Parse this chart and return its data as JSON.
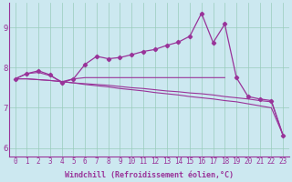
{
  "background_color": "#cce8f0",
  "grid_color": "#99ccbb",
  "line_color": "#993399",
  "xlim": [
    -0.5,
    23.5
  ],
  "ylim": [
    5.8,
    9.6
  ],
  "xticks": [
    0,
    1,
    2,
    3,
    4,
    5,
    6,
    7,
    8,
    9,
    10,
    11,
    12,
    13,
    14,
    15,
    16,
    17,
    18,
    19,
    20,
    21,
    22,
    23
  ],
  "yticks": [
    6,
    7,
    8,
    9
  ],
  "xlabel": "Windchill (Refroidissement éolien,°C)",
  "xlabel_fontsize": 6.0,
  "tick_fontsize": 5.5,
  "ytick_fontsize": 6.5,
  "line1_x": [
    0,
    1,
    2,
    3,
    4,
    5,
    6,
    7,
    8,
    9,
    10,
    11,
    12,
    13,
    14,
    15,
    16,
    17,
    18,
    19,
    20,
    21,
    22,
    23
  ],
  "line1_y": [
    7.72,
    7.85,
    7.92,
    7.82,
    7.62,
    7.72,
    8.08,
    8.28,
    8.22,
    8.25,
    8.32,
    8.4,
    8.45,
    8.55,
    8.63,
    8.78,
    9.35,
    8.62,
    9.08,
    7.75,
    7.28,
    7.22,
    7.18,
    6.32
  ],
  "line2_x": [
    0,
    1,
    2,
    3,
    4,
    5,
    6,
    7,
    8,
    9,
    10,
    11,
    12,
    13,
    14,
    15,
    16,
    17,
    18
  ],
  "line2_y": [
    7.72,
    7.85,
    7.88,
    7.8,
    7.65,
    7.72,
    7.75,
    7.75,
    7.75,
    7.75,
    7.75,
    7.75,
    7.75,
    7.75,
    7.75,
    7.75,
    7.75,
    7.75,
    7.75
  ],
  "line3_x": [
    0,
    1,
    2,
    3,
    4,
    5,
    6,
    7,
    8,
    9,
    10,
    11,
    12,
    13,
    14,
    15,
    16,
    17,
    18,
    19,
    20,
    21,
    22,
    23
  ],
  "line3_y": [
    7.72,
    7.72,
    7.7,
    7.68,
    7.65,
    7.62,
    7.58,
    7.55,
    7.52,
    7.48,
    7.45,
    7.42,
    7.38,
    7.35,
    7.32,
    7.28,
    7.25,
    7.22,
    7.18,
    7.15,
    7.1,
    7.05,
    7.0,
    6.32
  ],
  "line4_x": [
    0,
    1,
    2,
    3,
    4,
    5,
    6,
    7,
    8,
    9,
    10,
    11,
    12,
    13,
    14,
    15,
    16,
    17,
    18,
    19,
    20,
    21,
    22,
    23
  ],
  "line4_y": [
    7.72,
    7.72,
    7.7,
    7.68,
    7.65,
    7.62,
    7.6,
    7.58,
    7.56,
    7.53,
    7.5,
    7.48,
    7.45,
    7.42,
    7.4,
    7.37,
    7.35,
    7.32,
    7.28,
    7.25,
    7.22,
    7.18,
    7.15,
    6.32
  ]
}
